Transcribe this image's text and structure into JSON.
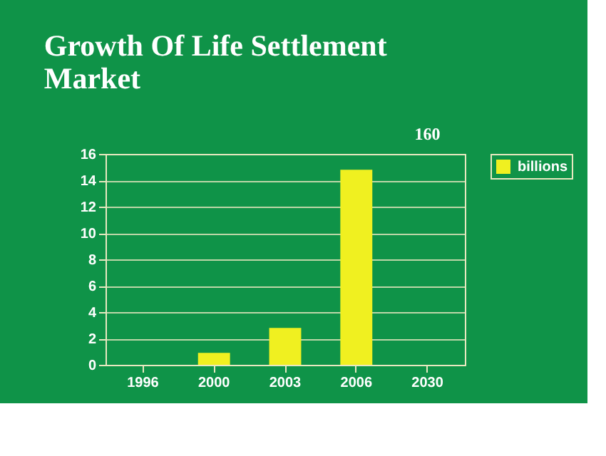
{
  "chart_data": {
    "type": "bar",
    "title": [
      "Growth Of Life Settlement",
      "Market"
    ],
    "categories": [
      "1996",
      "2000",
      "2003",
      "2006",
      "2030"
    ],
    "series": [
      {
        "name": "billions",
        "color": "#f0f020",
        "values": [
          0,
          0.9,
          2.8,
          14.8,
          null
        ]
      }
    ],
    "annotations": [
      "160"
    ],
    "ylim": [
      0,
      16
    ],
    "yticks": [
      0,
      2,
      4,
      6,
      8,
      10,
      12,
      14,
      16
    ],
    "grid": "y",
    "legend": "right"
  }
}
